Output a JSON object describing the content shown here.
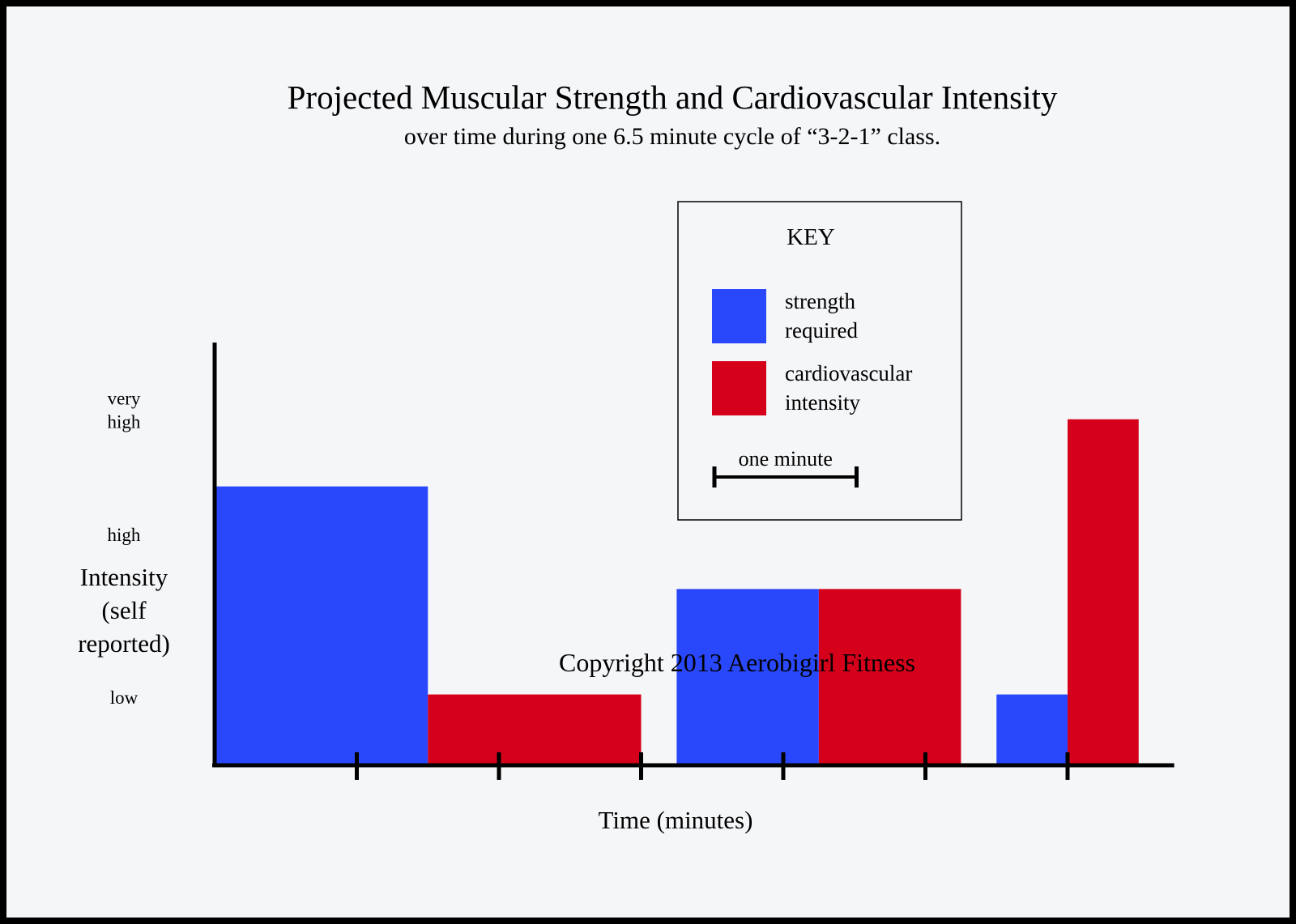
{
  "chart_data": {
    "type": "bar",
    "title": "Projected Muscular Strength and Cardiovascular Intensity",
    "subtitle": "over time during one 6.5 minute cycle of “3-2-1” class.",
    "xlabel": "Time (minutes)",
    "ylabel_lines": [
      "Intensity",
      "(self",
      "reported)"
    ],
    "x_range_minutes": [
      0,
      6.75
    ],
    "x_ticks_minutes": [
      1,
      2,
      3,
      4,
      5,
      6
    ],
    "y_range": [
      0,
      4.4
    ],
    "y_levels": [
      {
        "label_lines": [
          "very",
          "high"
        ],
        "value": 3.7
      },
      {
        "label_lines": [
          "high"
        ],
        "value": 2.4
      },
      {
        "label_lines": [
          "low"
        ],
        "value": 0.7
      }
    ],
    "series": [
      {
        "name": "strength required",
        "color": "#2a48fb"
      },
      {
        "name": "cardiovascular intensity",
        "color": "#d5001a"
      }
    ],
    "bars": [
      {
        "series": 0,
        "start": 0,
        "end": 1.5,
        "value": 2.9
      },
      {
        "series": 1,
        "start": 1.5,
        "end": 3.0,
        "value": 0.73
      },
      {
        "series": 0,
        "start": 3.25,
        "end": 4.25,
        "value": 1.83
      },
      {
        "series": 1,
        "start": 4.25,
        "end": 5.25,
        "value": 1.83
      },
      {
        "series": 0,
        "start": 5.5,
        "end": 6.0,
        "value": 0.73
      },
      {
        "series": 1,
        "start": 6.0,
        "end": 6.5,
        "value": 3.6
      }
    ],
    "legend": {
      "title": "KEY",
      "entries": [
        {
          "series": 0,
          "lines": [
            "strength",
            "required"
          ]
        },
        {
          "series": 1,
          "lines": [
            "cardiovascular",
            "intensity"
          ]
        }
      ],
      "scale_label": "one minute",
      "scale_minutes": 1,
      "placement": "top-right"
    },
    "watermark": "Copyright 2013 Aerobigirl Fitness"
  }
}
